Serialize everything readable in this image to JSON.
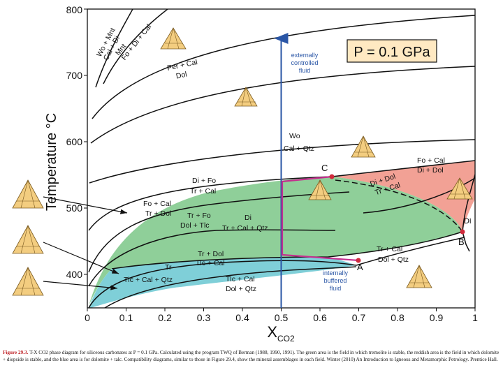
{
  "diagram": {
    "y_axis_title": "Temperature °C",
    "x_axis_title": "X",
    "x_axis_sub": "CO2",
    "pressure_label": "P = 0.1 GPa",
    "y_ticks": [
      "400",
      "500",
      "600",
      "700",
      "800"
    ],
    "x_ticks": [
      "0",
      "0.1",
      "0.2",
      "0.3",
      "0.4",
      "0.5",
      "0.6",
      "0.7",
      "0.8",
      "0.9",
      "1"
    ],
    "fluid_external": [
      "externally",
      "controlled",
      "fluid"
    ],
    "fluid_internal": [
      "internally",
      "buffered",
      "fluid"
    ],
    "points": {
      "A": "A",
      "B": "B",
      "C": "C",
      "Di": "Di"
    },
    "reactions": {
      "wo_mnt": [
        "Wo + Mnt",
        "Cal + Di"
      ],
      "mnt": [
        "Mnt",
        "Fo + Di + Cal"
      ],
      "per_cal": [
        "Per + Cal",
        "Dol"
      ],
      "wo_cal": [
        "Wo",
        "Cal + Qtz"
      ],
      "fo_cal_r": [
        "Fo + Cal",
        "Di + Dol"
      ],
      "di_fo": [
        "Di + Fo",
        "Tr + Cal"
      ],
      "di_dol": [
        "Di + Dol",
        "Tr + Cal"
      ],
      "fo_cal_l": [
        "Fo + Cal",
        "Tr + Dol"
      ],
      "tr_fo": [
        "Tr + Fo",
        "Dol + Tlc"
      ],
      "di_tr": [
        "Di",
        "Tr + Cal + Qtz"
      ],
      "tr_dol": [
        "Tr + Dol",
        "Tlc + Cal"
      ],
      "tr_tlc": [
        "Tr",
        "Tlc + Cal + Qtz"
      ],
      "tlc_cal": [
        "Tlc + Cal",
        "Dol + Qtz"
      ],
      "tr_cal": [
        "Tr + Cal",
        "Dol + Qtz"
      ]
    },
    "colors": {
      "green_field": "#8fcf99",
      "red_field": "#f2a195",
      "blue_field": "#7fcfd8",
      "arrow_blue": "#2a56a6",
      "path_magenta": "#c42f8e",
      "point_red": "#d02a3c",
      "triangle_fill": "#f3cd80"
    }
  },
  "caption": {
    "fig": "Figure 29.3.",
    "text": "T-X CO2 phase diagram for siliceous carbonates at P = 0.1 GPa. Calculated using the program TWQ of Berman (1988, 1990, 1991). The green area is the field in which tremolite is stable, the reddish area is the field in which dolomite + diopside is stable, and the blue area is for dolomite + talc. Compatibility diagrams, similar to those in Figure 29.4, show the mineral assemblages in each field. Winter (2010) An Introduction to Igneous and Metamorphic Petrology. Prentice Hall."
  }
}
